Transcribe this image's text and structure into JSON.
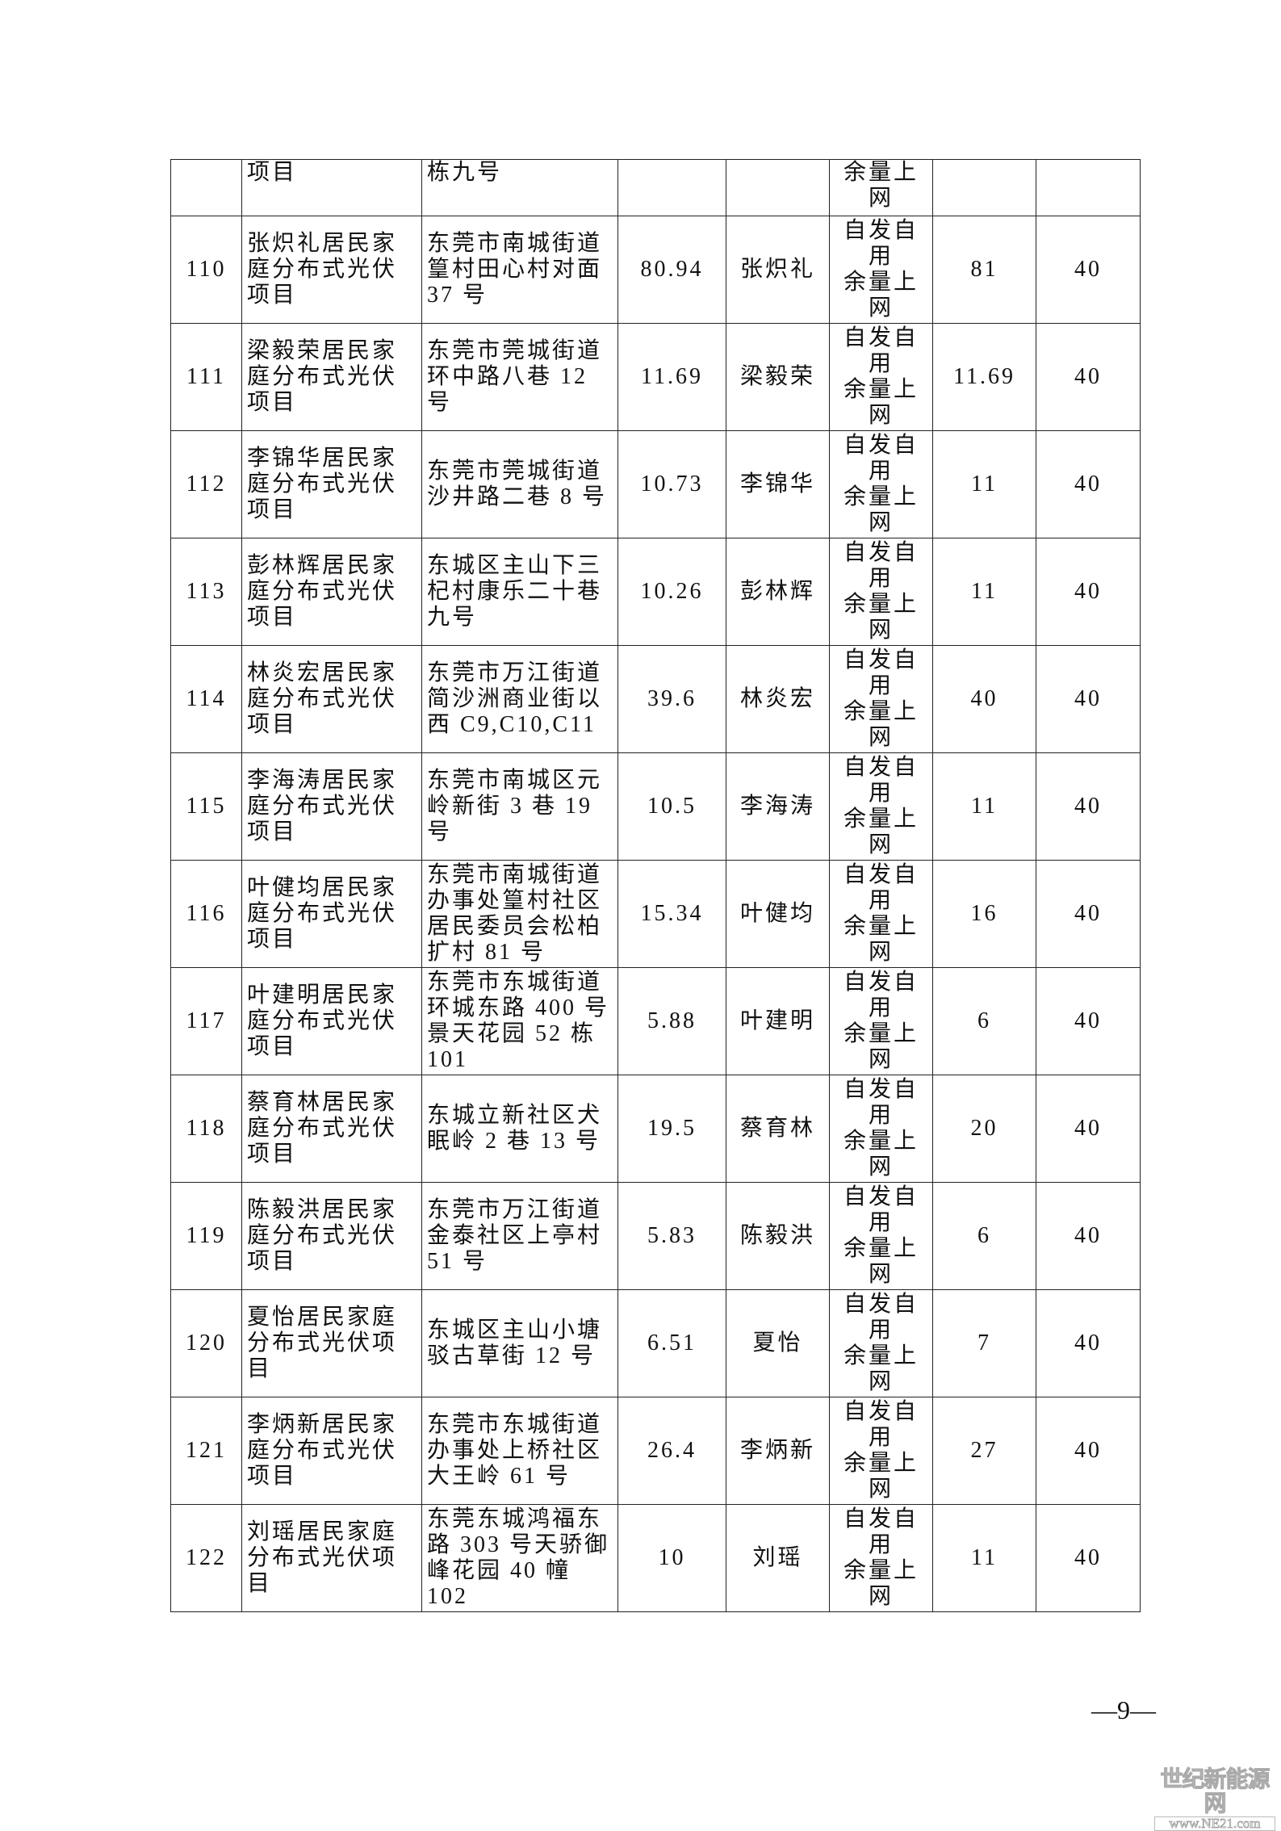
{
  "table": {
    "rows": [
      {
        "no": "",
        "project": "项目",
        "address": "栋九号",
        "capacity": "",
        "owner": "",
        "mode": "余量上\n网",
        "scale": "",
        "years": ""
      },
      {
        "no": "110",
        "project": "张炽礼居民家\n庭分布式光伏\n项目",
        "address": "东莞市南城街道\n篁村田心村对面\n37 号",
        "capacity": "80.94",
        "owner": "张炽礼",
        "mode": "自发自\n用\n余量上\n网",
        "scale": "81",
        "years": "40"
      },
      {
        "no": "111",
        "project": "梁毅荣居民家\n庭分布式光伏\n项目",
        "address": "东莞市莞城街道\n环中路八巷 12 号",
        "capacity": "11.69",
        "owner": "梁毅荣",
        "mode": "自发自\n用\n余量上\n网",
        "scale": "11.69",
        "years": "40"
      },
      {
        "no": "112",
        "project": "李锦华居民家\n庭分布式光伏\n项目",
        "address": "东莞市莞城街道\n沙井路二巷 8 号",
        "capacity": "10.73",
        "owner": "李锦华",
        "mode": "自发自\n用\n余量上\n网",
        "scale": "11",
        "years": "40"
      },
      {
        "no": "113",
        "project": "彭林辉居民家\n庭分布式光伏\n项目",
        "address": "东城区主山下三\n杞村康乐二十巷\n九号",
        "capacity": "10.26",
        "owner": "彭林辉",
        "mode": "自发自\n用\n余量上\n网",
        "scale": "11",
        "years": "40"
      },
      {
        "no": "114",
        "project": "林炎宏居民家\n庭分布式光伏\n项目",
        "address": "东莞市万江街道\n简沙洲商业街以\n西 C9,C10,C11",
        "capacity": "39.6",
        "owner": "林炎宏",
        "mode": "自发自\n用\n余量上\n网",
        "scale": "40",
        "years": "40"
      },
      {
        "no": "115",
        "project": "李海涛居民家\n庭分布式光伏\n项目",
        "address": "东莞市南城区元\n岭新街 3 巷 19 号",
        "capacity": "10.5",
        "owner": "李海涛",
        "mode": "自发自\n用\n余量上\n网",
        "scale": "11",
        "years": "40"
      },
      {
        "no": "116",
        "project": "叶健均居民家\n庭分布式光伏\n项目",
        "address": "东莞市南城街道\n办事处篁村社区\n居民委员会松柏\n扩村 81 号",
        "capacity": "15.34",
        "owner": "叶健均",
        "mode": "自发自\n用\n余量上\n网",
        "scale": "16",
        "years": "40"
      },
      {
        "no": "117",
        "project": "叶建明居民家\n庭分布式光伏\n项目",
        "address": "东莞市东城街道\n环城东路 400 号\n景天花园 52 栋\n101",
        "capacity": "5.88",
        "owner": "叶建明",
        "mode": "自发自\n用\n余量上\n网",
        "scale": "6",
        "years": "40"
      },
      {
        "no": "118",
        "project": "蔡育林居民家\n庭分布式光伏\n项目",
        "address": "东城立新社区犬\n眠岭 2 巷 13 号",
        "capacity": "19.5",
        "owner": "蔡育林",
        "mode": "自发自\n用\n余量上\n网",
        "scale": "20",
        "years": "40"
      },
      {
        "no": "119",
        "project": "陈毅洪居民家\n庭分布式光伏\n项目",
        "address": "东莞市万江街道\n金泰社区上亭村\n51 号",
        "capacity": "5.83",
        "owner": "陈毅洪",
        "mode": "自发自\n用\n余量上\n网",
        "scale": "6",
        "years": "40"
      },
      {
        "no": "120",
        "project": "夏怡居民家庭\n分布式光伏项\n目",
        "address": "东城区主山小塘\n驳古草街 12 号",
        "capacity": "6.51",
        "owner": "夏怡",
        "mode": "自发自\n用\n余量上\n网",
        "scale": "7",
        "years": "40"
      },
      {
        "no": "121",
        "project": "李炳新居民家\n庭分布式光伏\n项目",
        "address": "东莞市东城街道\n办事处上桥社区\n大王岭 61 号",
        "capacity": "26.4",
        "owner": "李炳新",
        "mode": "自发自\n用\n余量上\n网",
        "scale": "27",
        "years": "40"
      },
      {
        "no": "122",
        "project": "刘瑶居民家庭\n分布式光伏项\n目",
        "address": "东莞东城鸿福东\n路 303 号天骄御\n峰花园 40 幢 102",
        "capacity": "10",
        "owner": "刘瑶",
        "mode": "自发自\n用\n余量上\n网",
        "scale": "11",
        "years": "40"
      }
    ]
  },
  "footer": {
    "page_number": "—9—"
  },
  "watermark": {
    "line1": "世纪新能源网",
    "line2": "www.NE21.com"
  }
}
